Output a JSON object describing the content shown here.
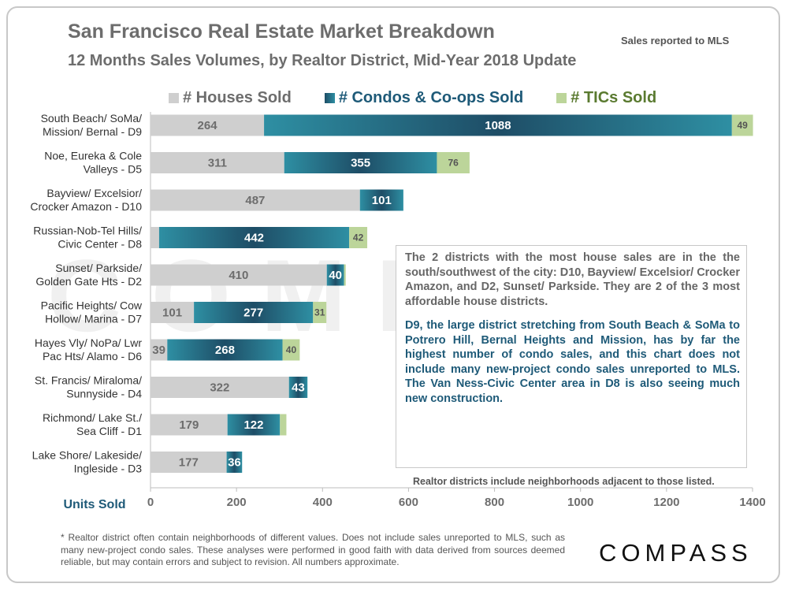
{
  "header": {
    "title": "San Francisco Real Estate Market Breakdown",
    "subtitle": "12 Months Sales Volumes, by Realtor District, Mid-Year 2018 Update",
    "source_note": "Sales reported to MLS"
  },
  "colors": {
    "houses": "#cfcfcf",
    "condos": "#2e8fa3",
    "condos_dark": "#1e4d66",
    "tics": "#bcd59a",
    "legend_houses_text": "#6d6d6d",
    "legend_condos_text": "#1e5a78",
    "legend_tics_text": "#5a7a30"
  },
  "chart_data": {
    "type": "bar",
    "orientation": "horizontal",
    "stacked": true,
    "categories": [
      [
        "South Beach/ SoMa/",
        "Mission/ Bernal - D9"
      ],
      [
        "Noe, Eureka & Cole",
        "Valleys - D5"
      ],
      [
        "Bayview/ Excelsior/",
        "Crocker Amazon - D10"
      ],
      [
        "Russian-Nob-Tel Hills/",
        "Civic Center - D8"
      ],
      [
        "Sunset/ Parkside/",
        "Golden Gate Hts - D2"
      ],
      [
        "Pacific Heights/ Cow",
        "Hollow/ Marina - D7"
      ],
      [
        "Hayes Vly/ NoPa/ Lwr",
        "Pac Hts/ Alamo - D6"
      ],
      [
        "St. Francis/  Miraloma/",
        "Sunnyside - D4"
      ],
      [
        "Richmond/ Lake St./",
        "Sea Cliff - D1"
      ],
      [
        "Lake Shore/ Lakeside/",
        "Ingleside - D3"
      ]
    ],
    "series": [
      {
        "name": "# Houses Sold",
        "values": [
          264,
          311,
          487,
          20,
          410,
          101,
          39,
          322,
          179,
          177
        ],
        "labels": [
          "264",
          "311",
          "487",
          "",
          "410",
          "101",
          "39",
          "322",
          "179",
          "177"
        ]
      },
      {
        "name": "# Condos & Co-ops Sold",
        "values": [
          1088,
          355,
          101,
          442,
          40,
          277,
          268,
          43,
          122,
          36
        ],
        "labels": [
          "1088",
          "355",
          "101",
          "442",
          "40",
          "277",
          "268",
          "43",
          "122",
          "36"
        ]
      },
      {
        "name": "# TICs Sold",
        "values": [
          49,
          76,
          0,
          42,
          4,
          31,
          40,
          0,
          15,
          0
        ],
        "labels": [
          "49",
          "76",
          "",
          "42",
          "",
          "31",
          "40",
          "",
          "",
          ""
        ]
      }
    ],
    "xlabel": "Units Sold",
    "xlim": [
      0,
      1400
    ],
    "xticks": [
      0,
      200,
      400,
      600,
      800,
      1000,
      1200,
      1400
    ],
    "grid": false,
    "legend": "top"
  },
  "callout": {
    "paragraph1": "The 2 districts with the most house sales are in the the south/southwest of the city: D10, Bayview/ Excelsior/ Crocker Amazon, and D2, Sunset/ Parkside. They are 2 of the 3 most affordable house districts.",
    "paragraph2": "D9, the large district stretching from South Beach & SoMa to Potrero Hill, Bernal Heights and Mission, has by far the highest number of condo sales, and this chart does not include many new-project condo sales unreported to MLS. The Van Ness-Civic Center area in D8 is also seeing much new construction."
  },
  "district_note": "Realtor districts include neighborhoods adjacent to those listed.",
  "footnote": "* Realtor district often contain neighborhoods of different values. Does not include sales unreported to MLS, such as many new-project condo sales. These analyses were performed in good faith with data derived from sources deemed reliable, but may contain errors and subject to revision. All numbers approximate.",
  "watermark": "COMPASS",
  "logo": "COMPASS"
}
